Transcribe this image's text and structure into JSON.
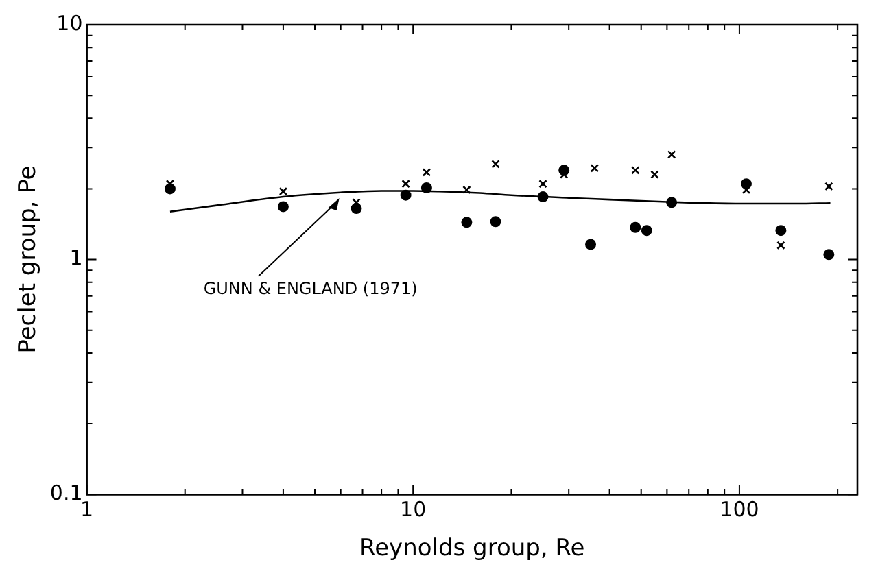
{
  "chart_data": {
    "type": "scatter",
    "xlabel": "Reynolds group, Re",
    "ylabel": "Peclet group, Pe",
    "log": "xy",
    "xlim": [
      1,
      230
    ],
    "ylim": [
      0.1,
      10
    ],
    "xticks": [
      1,
      {
        "value": 2,
        "label": null
      },
      {
        "value": 3,
        "label": null
      },
      {
        "value": 4,
        "label": null
      },
      {
        "value": 5,
        "label": null
      },
      {
        "value": 6,
        "label": null
      },
      {
        "value": 7,
        "label": null
      },
      {
        "value": 8,
        "label": null
      },
      {
        "value": 9,
        "label": null
      },
      10,
      {
        "value": 20,
        "label": null
      },
      {
        "value": 30,
        "label": null
      },
      {
        "value": 40,
        "label": null
      },
      {
        "value": 50,
        "label": null
      },
      {
        "value": 60,
        "label": null
      },
      {
        "value": 70,
        "label": null
      },
      {
        "value": 80,
        "label": null
      },
      {
        "value": 90,
        "label": null
      },
      100,
      {
        "value": 200,
        "label": null
      }
    ],
    "yticks": [
      0.1,
      {
        "value": 0.2,
        "label": null
      },
      {
        "value": 0.3,
        "label": null
      },
      {
        "value": 0.4,
        "label": null
      },
      {
        "value": 0.5,
        "label": null
      },
      {
        "value": 0.6,
        "label": null
      },
      {
        "value": 0.7,
        "label": null
      },
      {
        "value": 0.8,
        "label": null
      },
      {
        "value": 0.9,
        "label": null
      },
      1,
      {
        "value": 2,
        "label": null
      },
      {
        "value": 3,
        "label": null
      },
      {
        "value": 4,
        "label": null
      },
      {
        "value": 5,
        "label": null
      },
      {
        "value": 6,
        "label": null
      },
      {
        "value": 7,
        "label": null
      },
      {
        "value": 8,
        "label": null
      },
      {
        "value": 9,
        "label": null
      },
      10
    ],
    "series": [
      {
        "marker": "circle",
        "color": "#000000",
        "x": [
          1.8,
          4,
          6.7,
          9.5,
          11,
          14.6,
          17.9,
          25,
          29,
          35,
          48,
          52,
          62,
          105,
          134,
          188
        ],
        "values": [
          2.0,
          1.68,
          1.65,
          1.88,
          2.02,
          1.44,
          1.45,
          1.85,
          2.4,
          1.16,
          1.37,
          1.33,
          1.75,
          2.1,
          1.33,
          1.05
        ]
      },
      {
        "marker": "cross",
        "color": "#000000",
        "x": [
          1.8,
          4,
          6.7,
          9.5,
          11,
          14.6,
          17.9,
          25,
          29,
          36,
          48,
          55,
          62,
          105,
          134,
          188
        ],
        "values": [
          2.1,
          1.95,
          1.75,
          2.1,
          2.35,
          1.98,
          2.55,
          2.1,
          2.3,
          2.45,
          2.4,
          2.3,
          2.8,
          1.98,
          1.15,
          2.05
        ]
      },
      {
        "type": "line",
        "marker": "none",
        "color": "#000000",
        "x": [
          1.8,
          2.5,
          4,
          6,
          8,
          10,
          12,
          16,
          20,
          30,
          40,
          60,
          100,
          150,
          190
        ],
        "values": [
          1.6,
          1.7,
          1.85,
          1.93,
          1.96,
          1.96,
          1.95,
          1.92,
          1.88,
          1.83,
          1.8,
          1.76,
          1.73,
          1.73,
          1.74
        ]
      }
    ],
    "annotations": [
      {
        "text": "GUNN & ENGLAND (1971)",
        "x": 6,
        "y": 1.9
      }
    ]
  }
}
